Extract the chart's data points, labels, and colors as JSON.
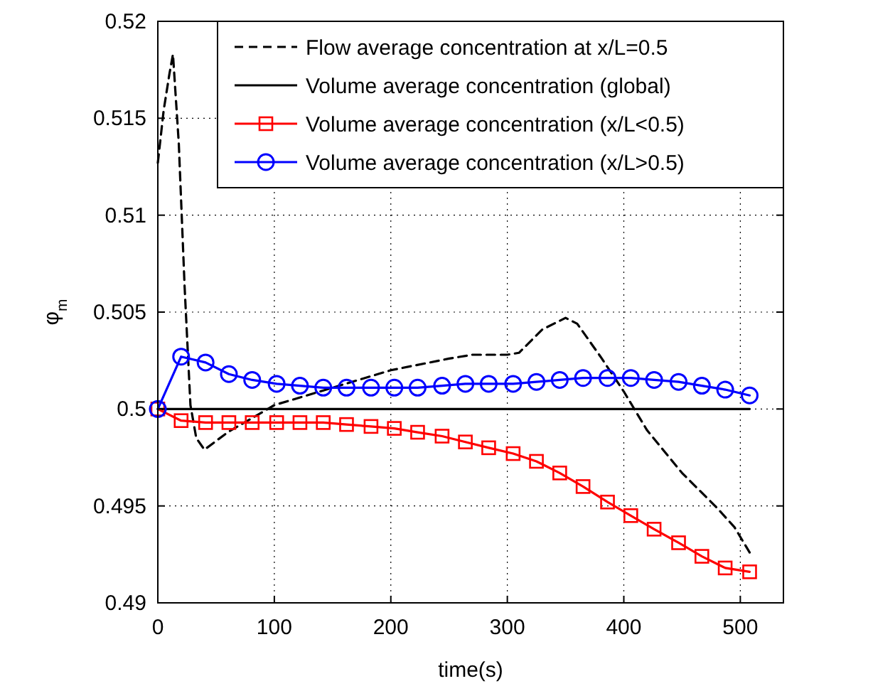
{
  "chart_data": {
    "type": "line",
    "xlabel": "time(s)",
    "ylabel": "φ$_{m}$",
    "xlim": [
      0,
      537
    ],
    "ylim": [
      0.49,
      0.52
    ],
    "xticks": [
      0,
      100,
      200,
      300,
      400,
      500
    ],
    "yticks": [
      0.49,
      0.495,
      0.5,
      0.505,
      0.51,
      0.515,
      0.52
    ],
    "grid": true,
    "legend": "top right",
    "series": [
      {
        "name": "Flow average concentration at x/L=0.5",
        "color": "#000000",
        "line_style": "dashed",
        "marker": "none",
        "x": [
          0,
          5,
          10,
          13,
          18,
          23,
          28,
          33,
          40,
          60,
          80,
          100,
          150,
          200,
          250,
          270,
          300,
          310,
          330,
          350,
          360,
          380,
          400,
          420,
          450,
          480,
          495,
          508
        ],
        "values": [
          0.5127,
          0.5154,
          0.5173,
          0.5183,
          0.5137,
          0.5063,
          0.5002,
          0.4985,
          0.4979,
          0.4988,
          0.4995,
          0.5002,
          0.5011,
          0.502,
          0.5026,
          0.5028,
          0.5028,
          0.5029,
          0.5041,
          0.5047,
          0.5044,
          0.5027,
          0.5009,
          0.4989,
          0.4967,
          0.4949,
          0.4939,
          0.4926
        ]
      },
      {
        "name": "Volume average concentration (global)",
        "color": "#000000",
        "line_style": "solid",
        "marker": "none",
        "x": [
          0,
          508
        ],
        "values": [
          0.5,
          0.5
        ]
      },
      {
        "name": "Volume average concentration (x/L<0.5)",
        "color": "#ff0000",
        "line_style": "solid",
        "marker": "square",
        "x": [
          0,
          20,
          41,
          61,
          81,
          102,
          122,
          142,
          162,
          183,
          203,
          223,
          244,
          264,
          284,
          305,
          325,
          345,
          365,
          386,
          406,
          426,
          447,
          467,
          487,
          508
        ],
        "values": [
          0.5,
          0.4994,
          0.4993,
          0.4993,
          0.4993,
          0.4993,
          0.4993,
          0.4993,
          0.4992,
          0.4991,
          0.499,
          0.4988,
          0.4986,
          0.4983,
          0.498,
          0.4977,
          0.4973,
          0.4967,
          0.496,
          0.4952,
          0.4945,
          0.4938,
          0.4931,
          0.4924,
          0.4918,
          0.4916
        ]
      },
      {
        "name": "Volume average concentration (x/L>0.5)",
        "color": "#0000ff",
        "line_style": "solid",
        "marker": "circle",
        "x": [
          0,
          20,
          41,
          61,
          81,
          102,
          122,
          142,
          162,
          183,
          203,
          223,
          244,
          264,
          284,
          305,
          325,
          345,
          365,
          386,
          406,
          426,
          447,
          467,
          487,
          508
        ],
        "values": [
          0.5,
          0.5027,
          0.5024,
          0.5018,
          0.5015,
          0.5013,
          0.5012,
          0.5011,
          0.5011,
          0.5011,
          0.5011,
          0.5011,
          0.5012,
          0.5013,
          0.5013,
          0.5013,
          0.5014,
          0.5015,
          0.5016,
          0.5016,
          0.5016,
          0.5015,
          0.5014,
          0.5012,
          0.501,
          0.5007
        ]
      }
    ]
  }
}
